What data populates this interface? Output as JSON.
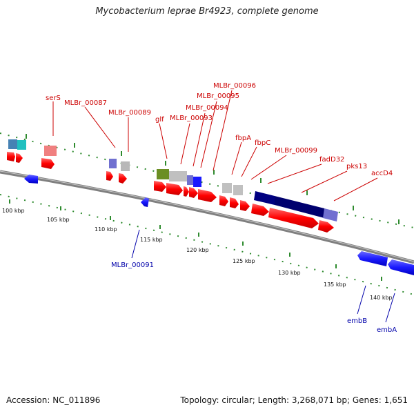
{
  "title": "Mycobacterium leprae Br4923, complete genome",
  "footer": {
    "accession": "Accession: NC_011896",
    "stats": "Topology: circular; Length: 3,268,071 bp; Genes: 1,651"
  },
  "ticks": [
    "100 kbp",
    "105 kbp",
    "110 kbp",
    "115 kbp",
    "120 kbp",
    "125 kbp",
    "130 kbp",
    "135 kbp",
    "140 kbp"
  ],
  "labels_forward": [
    "serS",
    "MLBr_00087",
    "MLBr_00089",
    "glf",
    "MLBr_00093",
    "MLBr_00094",
    "MLBr_00095",
    "MLBr_00096",
    "fbpA",
    "fbpC",
    "MLBr_00099",
    "fadD32",
    "pks13",
    "accD4"
  ],
  "labels_reverse": [
    "MLBr_00091",
    "embB",
    "embA"
  ],
  "colors": {
    "forward_cds": "#ff0000",
    "reverse_cds": "#1a1aff",
    "forward_label": "#cc0000",
    "reverse_label": "#0000aa",
    "tick_dots": "#2e8b2e",
    "backbone": "#808080"
  }
}
